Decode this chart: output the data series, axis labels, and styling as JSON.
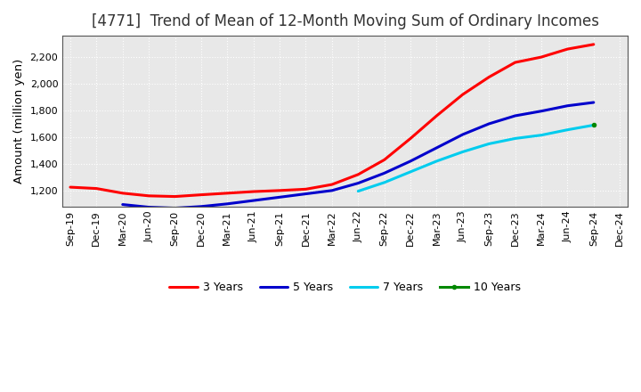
{
  "title": "[4771]  Trend of Mean of 12-Month Moving Sum of Ordinary Incomes",
  "ylabel": "Amount (million yen)",
  "ylim": [
    1080,
    2360
  ],
  "yticks": [
    1200,
    1400,
    1600,
    1800,
    2000,
    2200
  ],
  "background_color": "#ffffff",
  "plot_bg_color": "#e8e8e8",
  "grid_color": "#ffffff",
  "series": {
    "3 Years": {
      "color": "#ff0000",
      "points": [
        [
          "Sep-19",
          1225
        ],
        [
          "Dec-19",
          1215
        ],
        [
          "Mar-20",
          1180
        ],
        [
          "Jun-20",
          1160
        ],
        [
          "Sep-20",
          1155
        ],
        [
          "Dec-20",
          1168
        ],
        [
          "Mar-21",
          1180
        ],
        [
          "Jun-21",
          1192
        ],
        [
          "Sep-21",
          1200
        ],
        [
          "Dec-21",
          1210
        ],
        [
          "Mar-22",
          1245
        ],
        [
          "Jun-22",
          1320
        ],
        [
          "Sep-22",
          1430
        ],
        [
          "Dec-22",
          1590
        ],
        [
          "Mar-23",
          1760
        ],
        [
          "Jun-23",
          1920
        ],
        [
          "Sep-23",
          2050
        ],
        [
          "Dec-23",
          2160
        ],
        [
          "Mar-24",
          2200
        ],
        [
          "Jun-24",
          2260
        ],
        [
          "Sep-24",
          2295
        ]
      ]
    },
    "5 Years": {
      "color": "#0000cc",
      "points": [
        [
          "Mar-20",
          1095
        ],
        [
          "Jun-20",
          1075
        ],
        [
          "Sep-20",
          1068
        ],
        [
          "Dec-20",
          1080
        ],
        [
          "Mar-21",
          1100
        ],
        [
          "Jun-21",
          1125
        ],
        [
          "Sep-21",
          1150
        ],
        [
          "Dec-21",
          1175
        ],
        [
          "Mar-22",
          1200
        ],
        [
          "Jun-22",
          1255
        ],
        [
          "Sep-22",
          1330
        ],
        [
          "Dec-22",
          1420
        ],
        [
          "Mar-23",
          1520
        ],
        [
          "Jun-23",
          1620
        ],
        [
          "Sep-23",
          1700
        ],
        [
          "Dec-23",
          1760
        ],
        [
          "Mar-24",
          1795
        ],
        [
          "Jun-24",
          1835
        ],
        [
          "Sep-24",
          1860
        ]
      ]
    },
    "7 Years": {
      "color": "#00ccee",
      "points": [
        [
          "Jun-22",
          1195
        ],
        [
          "Sep-22",
          1260
        ],
        [
          "Dec-22",
          1340
        ],
        [
          "Mar-23",
          1420
        ],
        [
          "Jun-23",
          1490
        ],
        [
          "Sep-23",
          1550
        ],
        [
          "Dec-23",
          1590
        ],
        [
          "Mar-24",
          1615
        ],
        [
          "Jun-24",
          1655
        ],
        [
          "Sep-24",
          1690
        ]
      ]
    },
    "10 Years": {
      "color": "#008800",
      "points": [
        [
          "Sep-24",
          1690
        ]
      ]
    }
  },
  "xtick_labels": [
    "Sep-19",
    "Dec-19",
    "Mar-20",
    "Jun-20",
    "Sep-20",
    "Dec-20",
    "Mar-21",
    "Jun-21",
    "Sep-21",
    "Dec-21",
    "Mar-22",
    "Jun-22",
    "Sep-22",
    "Dec-22",
    "Mar-23",
    "Jun-23",
    "Sep-23",
    "Dec-23",
    "Mar-24",
    "Jun-24",
    "Sep-24",
    "Dec-24"
  ],
  "title_fontsize": 12,
  "label_fontsize": 9.5,
  "tick_fontsize": 8,
  "legend_fontsize": 9
}
